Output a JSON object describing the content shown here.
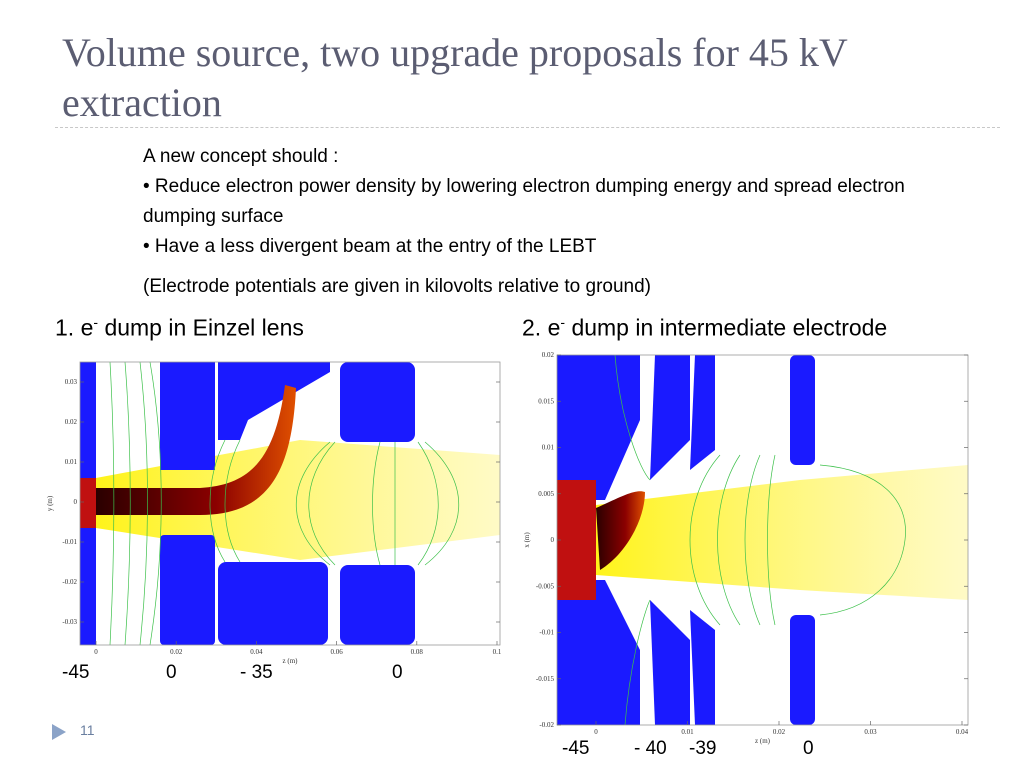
{
  "header": {
    "title": "Volume source, two upgrade proposals for 45 kV extraction"
  },
  "body": {
    "lines": [
      "A new concept should :",
      "• Reduce electron power density by lowering electron dumping energy and spread electron dumping surface",
      "• Have a less divergent beam at the entry of the LEBT"
    ],
    "note": "(Electrode potentials are given in kilovolts relative to ground)"
  },
  "sections": [
    {
      "number": "1.",
      "text_before": "e",
      "superscript": "-",
      "text_after": "dump in Einzel lens",
      "figure": {
        "xlabel": "z (m)",
        "ylabel": "y (m)",
        "xticks": [
          "0",
          "0.02",
          "0.04",
          "0.06",
          "0.08",
          "0.1"
        ],
        "yticks": [
          "0.03",
          "0.02",
          "0.01",
          "0",
          "-0.01",
          "-0.02",
          "-0.03"
        ]
      },
      "potentials": [
        "-45",
        "0",
        "- 35",
        "0"
      ]
    },
    {
      "number": "2.",
      "text_before": "e",
      "superscript": "-",
      "text_after": "dump in intermediate electrode",
      "figure": {
        "xlabel": "z (m)",
        "ylabel": "x (m)",
        "xticks": [
          "0",
          "0.01",
          "0.02",
          "0.03",
          "0.04"
        ],
        "yticks": [
          "0.02",
          "0.015",
          "0.01",
          "0.005",
          "0",
          "-0.005",
          "-0.01",
          "-0.015",
          "-0.02"
        ]
      },
      "potentials": [
        "-45",
        "- 40",
        "-39",
        "0"
      ]
    }
  ],
  "footer": {
    "page": "11"
  }
}
